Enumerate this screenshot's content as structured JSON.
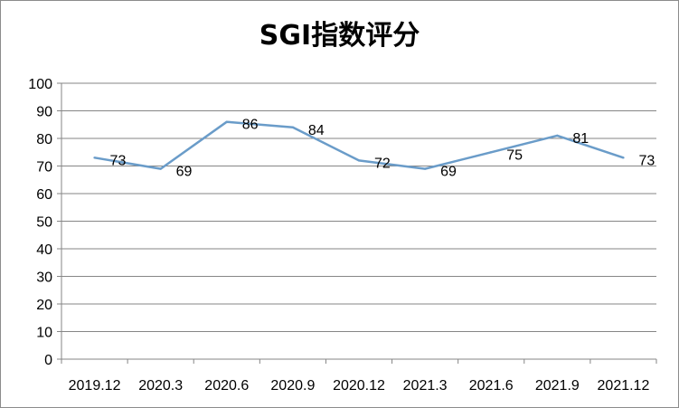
{
  "chart_data": {
    "type": "line",
    "title": "SGI指数评分",
    "categories": [
      "2019.12",
      "2020.3",
      "2020.6",
      "2020.9",
      "2020.12",
      "2021.3",
      "2021.6",
      "2021.9",
      "2021.12"
    ],
    "series": [
      {
        "values": [
          73,
          69,
          86,
          84,
          72,
          69,
          75,
          81,
          73
        ]
      }
    ],
    "ylim": [
      0,
      100
    ],
    "yticks": [
      0,
      10,
      20,
      30,
      40,
      50,
      60,
      70,
      80,
      90,
      100
    ],
    "grid": true,
    "legend": "none",
    "line_color": "#6a9cc9"
  }
}
